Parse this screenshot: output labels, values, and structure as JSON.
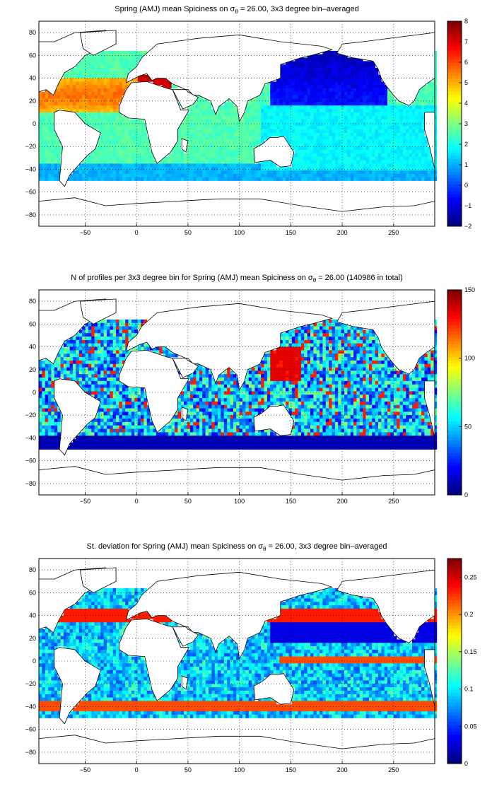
{
  "figure": {
    "panels": [
      {
        "title_pre": "Spring (AMJ) mean Spiciness on σ",
        "title_sub": "θ",
        "title_post": " = 26.00, 3x3 degree bin–averaged",
        "colorbar": {
          "ticks": [
            "8",
            "7",
            "6",
            "5",
            "4",
            "3",
            "2",
            "1",
            "0",
            "−1",
            "−2"
          ],
          "range": [
            -2,
            8
          ],
          "colormap": "jet"
        }
      },
      {
        "title_pre": "N of profiles per 3x3 degree bin for Spring (AMJ) mean Spiciness on σ",
        "title_sub": "θ",
        "title_post": " = 26.00 (140986 in total)",
        "colorbar": {
          "ticks": [
            "150",
            "100",
            "50",
            "0"
          ],
          "range": [
            0,
            150
          ],
          "colormap": "jet"
        }
      },
      {
        "title_pre": "St. deviation for Spring (AMJ) mean Spiciness on σ",
        "title_sub": "θ",
        "title_post": " = 26.00, 3x3 degree bin–averaged",
        "colorbar": {
          "ticks": [
            "0.25",
            "0.2",
            "0.15",
            "0.1",
            "0.05",
            "0"
          ],
          "range": [
            0,
            0.275
          ],
          "colormap": "jet"
        }
      }
    ],
    "axes": {
      "xticks": [
        "−50",
        "0",
        "50",
        "100",
        "150",
        "200",
        "250"
      ],
      "yticks": [
        "80",
        "60",
        "40",
        "20",
        "0",
        "−20",
        "−40",
        "−60",
        "−80"
      ],
      "xlim": [
        -95,
        290
      ],
      "ylim": [
        -90,
        90
      ],
      "grid": "dotted"
    }
  }
}
